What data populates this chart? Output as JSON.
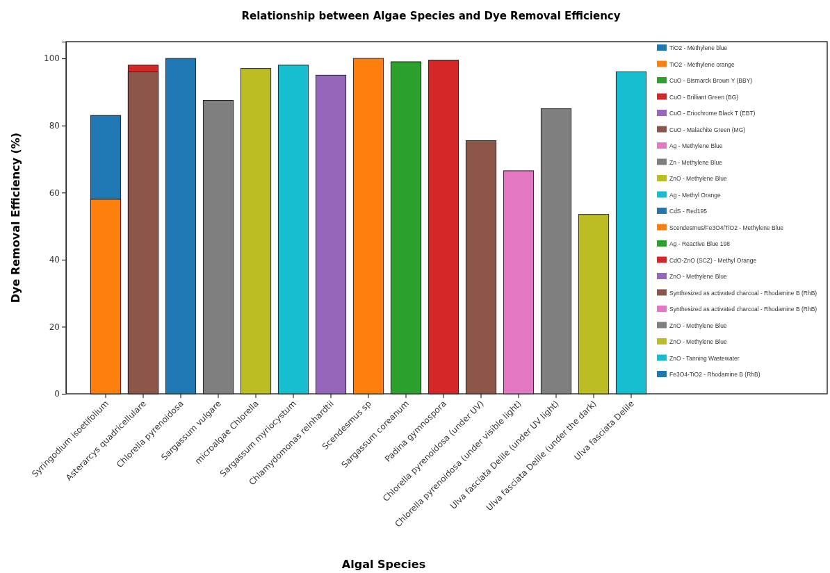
{
  "chart_data": {
    "type": "bar",
    "title": "Relationship between Algae Species and Dye Removal Efficiency",
    "xlabel": "Algal Species",
    "ylabel": "Dye Removal Efficiency (%)",
    "categories": [
      "Syringodium isoetifolium",
      "Asterarcys quadricellulare",
      "Chlorella pyrenoidosa",
      "Sargassum vulgare",
      "microalgae Chlorella",
      "Sargassum myriocystum",
      "Chlamydomonas reinhardtii",
      "Scendesmus sp",
      "Sargassum coreanum",
      "Padina gymnospora",
      "Chlorella pyrenoidosa (under UV)",
      "Chlorella pyrenoidosa (under visible light)",
      "Ulva fasciata Delile (under UV light)",
      "Ulva fasciata Delile (under the dark)",
      "Ulva fasciata Delile"
    ],
    "ylim": [
      0,
      105
    ],
    "yticks": [
      0,
      20,
      40,
      60,
      80,
      100
    ],
    "legend": "top right",
    "series": [
      {
        "name": "TiO2 - Methylene blue",
        "color": "#1f77b4",
        "values": [
          83,
          null,
          null,
          null,
          null,
          null,
          null,
          null,
          null,
          null,
          null,
          null,
          null,
          null,
          null
        ]
      },
      {
        "name": "TiO2 - Methylene orange",
        "color": "#ff7f0e",
        "values": [
          58,
          null,
          null,
          null,
          null,
          null,
          null,
          null,
          null,
          null,
          null,
          null,
          null,
          null,
          null
        ]
      },
      {
        "name": "CuO - Bismarck Brown Y (BBY)",
        "color": "#2ca02c",
        "values": [
          null,
          null,
          null,
          null,
          null,
          null,
          null,
          null,
          null,
          null,
          null,
          null,
          null,
          null,
          null
        ]
      },
      {
        "name": "CuO - Brilliant Green (BG)",
        "color": "#d62728",
        "values": [
          null,
          98,
          null,
          null,
          null,
          null,
          null,
          null,
          null,
          null,
          null,
          null,
          null,
          null,
          null
        ]
      },
      {
        "name": "CuO - Eriochrome Black T (EBT)",
        "color": "#9467bd",
        "values": [
          null,
          null,
          null,
          null,
          null,
          null,
          null,
          null,
          null,
          null,
          null,
          null,
          null,
          null,
          null
        ]
      },
      {
        "name": "CuO - Malachite Green (MG)",
        "color": "#8c564b",
        "values": [
          null,
          96,
          null,
          null,
          null,
          null,
          null,
          null,
          null,
          null,
          null,
          null,
          null,
          null,
          null
        ]
      },
      {
        "name": "Ag - Methylene Blue",
        "color": "#e377c2",
        "values": [
          null,
          null,
          null,
          null,
          null,
          null,
          null,
          null,
          null,
          null,
          null,
          null,
          null,
          null,
          null
        ]
      },
      {
        "name": "Zn - Methylene Blue",
        "color": "#7f7f7f",
        "values": [
          null,
          null,
          null,
          87.5,
          null,
          null,
          null,
          null,
          null,
          null,
          null,
          null,
          null,
          null,
          null
        ]
      },
      {
        "name": "ZnO - Methylene Blue",
        "color": "#bcbd22",
        "values": [
          null,
          null,
          null,
          null,
          97,
          null,
          null,
          null,
          null,
          null,
          null,
          null,
          null,
          null,
          null
        ]
      },
      {
        "name": "Ag - Methyl Orange",
        "color": "#17becf",
        "values": [
          null,
          null,
          null,
          null,
          null,
          98,
          null,
          null,
          null,
          null,
          null,
          null,
          null,
          null,
          null
        ]
      },
      {
        "name": "CdS - Red195",
        "color": "#1f77b4",
        "values": [
          null,
          null,
          100,
          null,
          null,
          null,
          null,
          null,
          null,
          null,
          null,
          null,
          null,
          null,
          null
        ]
      },
      {
        "name": "Scendesmus/Fe3O4/TiO2 - Methylene Blue",
        "color": "#ff7f0e",
        "values": [
          null,
          null,
          null,
          null,
          null,
          null,
          null,
          100,
          null,
          null,
          null,
          null,
          null,
          null,
          null
        ]
      },
      {
        "name": "Ag - Reactive Blue 198",
        "color": "#2ca02c",
        "values": [
          null,
          null,
          null,
          null,
          null,
          null,
          null,
          null,
          99,
          null,
          null,
          null,
          null,
          null,
          null
        ]
      },
      {
        "name": "CdO-ZnO (SCZ) - Methyl Orange",
        "color": "#d62728",
        "values": [
          null,
          null,
          null,
          null,
          null,
          null,
          null,
          null,
          null,
          99.5,
          null,
          null,
          null,
          null,
          null
        ]
      },
      {
        "name": "ZnO - Methylene Blue",
        "color": "#9467bd",
        "values": [
          null,
          null,
          null,
          null,
          null,
          null,
          95,
          null,
          null,
          null,
          null,
          null,
          null,
          null,
          null
        ]
      },
      {
        "name": "Synthesized as activated charcoal - Rhodamine B (RhB)",
        "color": "#8c564b",
        "values": [
          null,
          null,
          null,
          null,
          null,
          null,
          null,
          null,
          null,
          null,
          75.5,
          null,
          null,
          null,
          null
        ]
      },
      {
        "name": "Synthesized as activated charcoal - Rhodamine B (RhB)",
        "color": "#e377c2",
        "values": [
          null,
          null,
          null,
          null,
          null,
          null,
          null,
          null,
          null,
          null,
          null,
          66.5,
          null,
          null,
          null
        ]
      },
      {
        "name": "ZnO - Methylene Blue",
        "color": "#7f7f7f",
        "values": [
          null,
          null,
          null,
          null,
          null,
          null,
          null,
          null,
          null,
          null,
          null,
          null,
          85,
          null,
          null
        ]
      },
      {
        "name": "ZnO - Methylene Blue",
        "color": "#bcbd22",
        "values": [
          null,
          null,
          null,
          null,
          null,
          null,
          null,
          null,
          null,
          null,
          null,
          null,
          null,
          53.5,
          null
        ]
      },
      {
        "name": "ZnO - Tanning Wastewater",
        "color": "#17becf",
        "values": [
          null,
          null,
          null,
          null,
          null,
          null,
          null,
          null,
          null,
          null,
          null,
          null,
          null,
          null,
          96
        ]
      },
      {
        "name": "Fe3O4-TiO2 - Rhodamine B (RhB)",
        "color": "#1f77b4",
        "values": [
          null,
          null,
          null,
          null,
          null,
          null,
          null,
          null,
          null,
          null,
          null,
          null,
          null,
          null,
          null
        ]
      }
    ]
  }
}
